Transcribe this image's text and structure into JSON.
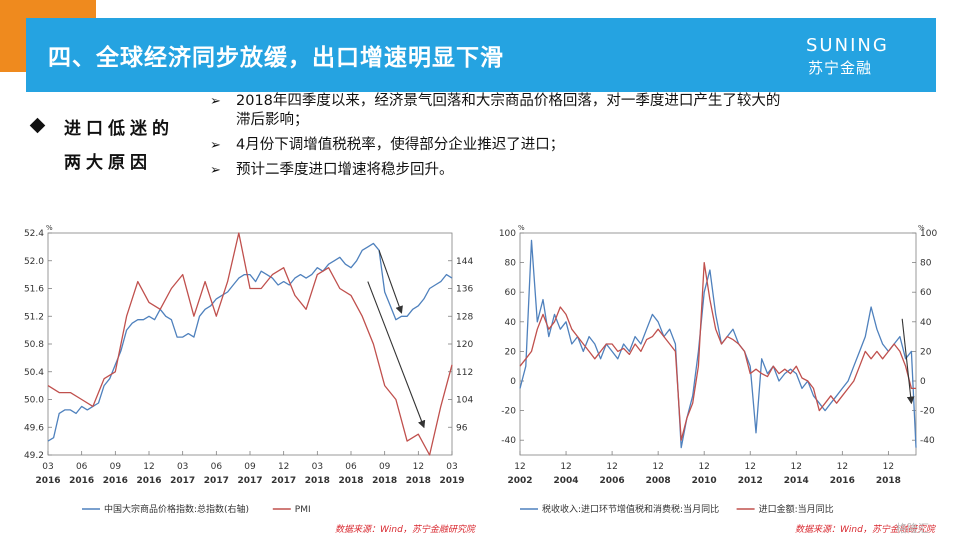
{
  "header": {
    "title": "四、全球经济同步放缓，出口增速明显下滑",
    "logo_en": "SUNING",
    "logo_cn": "苏宁金融"
  },
  "left_heading": {
    "line1": "进口低迷的",
    "line2": "两大原因"
  },
  "bullets": [
    {
      "text": "2018年四季度以来，经济景气回落和大宗商品价格回落，对一季度进口产生了较大的"
    },
    {
      "text": "滞后影响；"
    },
    {
      "text": "4月份下调增值税税率，使得部分企业推迟了进口；"
    },
    {
      "text": "预计二季度进口增速将稳步回升。"
    }
  ],
  "sources": {
    "left": "数据来源：Wind，苏宁金融研究院",
    "right": "数据来源：Wind，苏宁金融研究院"
  },
  "watermark": "格隆汇",
  "colors": {
    "blue_series": "#4f81bd",
    "red_series": "#c0504d",
    "header": "#25a3e1",
    "orange": "#ef8a1e",
    "arrow": "#333333"
  },
  "chart_data": [
    {
      "type": "line",
      "title": "",
      "left_axis": {
        "ylim": [
          49.2,
          52.4
        ],
        "ticks": [
          49.2,
          49.6,
          50.0,
          50.4,
          50.8,
          51.2,
          51.6,
          52.0,
          52.4
        ],
        "unit": "%"
      },
      "right_axis": {
        "ylim": [
          88,
          152
        ],
        "ticks": [
          96,
          104,
          112,
          120,
          128,
          136,
          144
        ]
      },
      "x_ticks": [
        {
          "top": "03",
          "bottom": "2016"
        },
        {
          "top": "06",
          "bottom": "2016"
        },
        {
          "top": "09",
          "bottom": "2016"
        },
        {
          "top": "12",
          "bottom": "2016"
        },
        {
          "top": "03",
          "bottom": "2017"
        },
        {
          "top": "06",
          "bottom": "2017"
        },
        {
          "top": "09",
          "bottom": "2017"
        },
        {
          "top": "12",
          "bottom": "2017"
        },
        {
          "top": "03",
          "bottom": "2018"
        },
        {
          "top": "06",
          "bottom": "2018"
        },
        {
          "top": "09",
          "bottom": "2018"
        },
        {
          "top": "12",
          "bottom": "2018"
        },
        {
          "top": "03",
          "bottom": "2019"
        }
      ],
      "x_range": [
        0,
        36
      ],
      "series": [
        {
          "name": "中国大宗商品价格指数:总指数(右轴)",
          "axis": "right",
          "color": "#4f81bd",
          "x": [
            0,
            0.5,
            1,
            1.5,
            2,
            2.5,
            3,
            3.5,
            4,
            4.5,
            5,
            5.5,
            6,
            6.5,
            7,
            7.5,
            8,
            8.5,
            9,
            9.5,
            10,
            10.5,
            11,
            11.5,
            12,
            12.5,
            13,
            13.5,
            14,
            14.5,
            15,
            15.5,
            16,
            16.5,
            17,
            17.5,
            18,
            18.5,
            19,
            19.5,
            20,
            20.5,
            21,
            21.5,
            22,
            22.5,
            23,
            23.5,
            24,
            24.5,
            25,
            25.5,
            26,
            26.5,
            27,
            27.5,
            28,
            28.5,
            29,
            29.5,
            30,
            30.5,
            31,
            31.5,
            32,
            32.5,
            33,
            33.5,
            34,
            34.5,
            35,
            35.5,
            36
          ],
          "values": [
            92,
            93,
            100,
            101,
            101,
            100,
            102,
            101,
            102,
            103,
            108,
            110,
            114,
            118,
            124,
            126,
            127,
            127,
            128,
            127,
            130,
            128,
            127,
            122,
            122,
            123,
            122,
            128,
            130,
            131,
            133,
            134,
            135,
            137,
            139,
            140,
            140,
            138,
            141,
            140,
            139,
            137,
            138,
            137,
            139,
            140,
            139,
            140,
            142,
            141,
            143,
            144,
            145,
            143,
            142,
            144,
            147,
            148,
            149,
            147,
            135,
            131,
            127,
            128,
            128,
            130,
            131,
            133,
            136,
            137,
            138,
            140,
            139
          ]
        },
        {
          "name": "PMI",
          "axis": "left",
          "color": "#c0504d",
          "x": [
            0,
            1,
            2,
            3,
            4,
            5,
            6,
            7,
            8,
            9,
            10,
            11,
            12,
            13,
            14,
            15,
            16,
            17,
            18,
            19,
            20,
            21,
            22,
            23,
            24,
            25,
            26,
            27,
            28,
            29,
            30,
            31,
            32,
            33,
            34,
            35,
            36
          ],
          "values": [
            50.2,
            50.1,
            50.1,
            50.0,
            49.9,
            50.3,
            50.4,
            51.2,
            51.7,
            51.4,
            51.3,
            51.6,
            51.8,
            51.2,
            51.7,
            51.2,
            51.7,
            52.4,
            51.6,
            51.6,
            51.8,
            51.9,
            51.5,
            51.3,
            51.8,
            51.9,
            51.6,
            51.5,
            51.2,
            50.8,
            50.2,
            50.0,
            49.4,
            49.5,
            49.2,
            49.9,
            50.5
          ]
        }
      ],
      "annotations": [
        {
          "type": "arrow",
          "from": {
            "x": 29.5,
            "y": 147,
            "axis": "right"
          },
          "to": {
            "x": 31.5,
            "y": 129,
            "axis": "right"
          }
        },
        {
          "type": "arrow",
          "from": {
            "x": 28.5,
            "y": 51.7,
            "axis": "left"
          },
          "to": {
            "x": 33.5,
            "y": 49.6,
            "axis": "left"
          }
        }
      ],
      "legend": "bottom"
    },
    {
      "type": "line",
      "title": "",
      "left_axis": {
        "ylim": [
          -50,
          100
        ],
        "ticks": [
          -40,
          -20,
          0,
          20,
          40,
          60,
          80,
          100
        ],
        "unit": "%"
      },
      "right_axis": {
        "ylim": [
          -50,
          100
        ],
        "ticks": [
          -40,
          -20,
          0,
          20,
          40,
          60,
          80,
          100
        ],
        "unit": "%"
      },
      "x_ticks": [
        {
          "top": "12",
          "bottom": "2002"
        },
        {
          "top": "12",
          "bottom": "2004"
        },
        {
          "top": "12",
          "bottom": "2006"
        },
        {
          "top": "12",
          "bottom": "2008"
        },
        {
          "top": "12",
          "bottom": "2010"
        },
        {
          "top": "12",
          "bottom": "2012"
        },
        {
          "top": "12",
          "bottom": "2014"
        },
        {
          "top": "12",
          "bottom": "2016"
        },
        {
          "top": "12",
          "bottom": "2018"
        }
      ],
      "x_range": [
        2002.0,
        2019.2
      ],
      "series": [
        {
          "name": "税收收入:进口环节增值税和消费税:当月同比",
          "axis": "left",
          "color": "#4f81bd",
          "x": [
            2002.0,
            2002.25,
            2002.5,
            2002.75,
            2003.0,
            2003.25,
            2003.5,
            2003.75,
            2004.0,
            2004.25,
            2004.5,
            2004.75,
            2005.0,
            2005.25,
            2005.5,
            2005.75,
            2006.0,
            2006.25,
            2006.5,
            2006.75,
            2007.0,
            2007.25,
            2007.5,
            2007.75,
            2008.0,
            2008.25,
            2008.5,
            2008.75,
            2009.0,
            2009.25,
            2009.5,
            2009.75,
            2010.0,
            2010.25,
            2010.5,
            2010.75,
            2011.0,
            2011.25,
            2011.5,
            2011.75,
            2012.0,
            2012.25,
            2012.5,
            2012.75,
            2013.0,
            2013.25,
            2013.5,
            2013.75,
            2014.0,
            2014.25,
            2014.5,
            2014.75,
            2015.0,
            2015.25,
            2015.5,
            2015.75,
            2016.0,
            2016.25,
            2016.5,
            2016.75,
            2017.0,
            2017.25,
            2017.5,
            2017.75,
            2018.0,
            2018.25,
            2018.5,
            2018.75,
            2019.0,
            2019.2
          ],
          "values": [
            -5,
            10,
            95,
            40,
            55,
            30,
            45,
            35,
            40,
            25,
            30,
            20,
            30,
            25,
            15,
            25,
            20,
            15,
            25,
            20,
            30,
            25,
            35,
            45,
            40,
            30,
            35,
            25,
            -45,
            -25,
            -10,
            20,
            60,
            75,
            45,
            25,
            30,
            35,
            25,
            20,
            10,
            -35,
            15,
            5,
            10,
            0,
            5,
            8,
            5,
            -5,
            0,
            -10,
            -15,
            -20,
            -15,
            -10,
            -5,
            0,
            10,
            20,
            30,
            50,
            35,
            25,
            20,
            25,
            30,
            15,
            20,
            -45
          ]
        },
        {
          "name": "进口金额:当月同比",
          "axis": "right",
          "color": "#c0504d",
          "x": [
            2002.0,
            2002.25,
            2002.5,
            2002.75,
            2003.0,
            2003.25,
            2003.5,
            2003.75,
            2004.0,
            2004.25,
            2004.5,
            2004.75,
            2005.0,
            2005.25,
            2005.5,
            2005.75,
            2006.0,
            2006.25,
            2006.5,
            2006.75,
            2007.0,
            2007.25,
            2007.5,
            2007.75,
            2008.0,
            2008.25,
            2008.5,
            2008.75,
            2009.0,
            2009.25,
            2009.5,
            2009.75,
            2010.0,
            2010.25,
            2010.5,
            2010.75,
            2011.0,
            2011.25,
            2011.5,
            2011.75,
            2012.0,
            2012.25,
            2012.5,
            2012.75,
            2013.0,
            2013.25,
            2013.5,
            2013.75,
            2014.0,
            2014.25,
            2014.5,
            2014.75,
            2015.0,
            2015.25,
            2015.5,
            2015.75,
            2016.0,
            2016.25,
            2016.5,
            2016.75,
            2017.0,
            2017.25,
            2017.5,
            2017.75,
            2018.0,
            2018.25,
            2018.5,
            2018.75,
            2019.0,
            2019.2
          ],
          "values": [
            10,
            15,
            20,
            35,
            45,
            35,
            40,
            50,
            45,
            35,
            30,
            25,
            20,
            15,
            20,
            25,
            25,
            20,
            22,
            18,
            25,
            20,
            28,
            30,
            35,
            30,
            25,
            20,
            -40,
            -25,
            -15,
            10,
            80,
            55,
            35,
            25,
            30,
            28,
            25,
            20,
            5,
            8,
            5,
            3,
            10,
            5,
            8,
            5,
            10,
            2,
            0,
            -5,
            -20,
            -15,
            -10,
            -15,
            -10,
            -5,
            0,
            10,
            20,
            15,
            20,
            15,
            20,
            25,
            20,
            10,
            -5,
            -5
          ]
        }
      ],
      "annotations": [
        {
          "type": "arrow",
          "from": {
            "x": 2018.6,
            "y": 42,
            "axis": "left"
          },
          "to": {
            "x": 2019.0,
            "y": -15,
            "axis": "left"
          }
        }
      ],
      "legend": "bottom"
    }
  ]
}
